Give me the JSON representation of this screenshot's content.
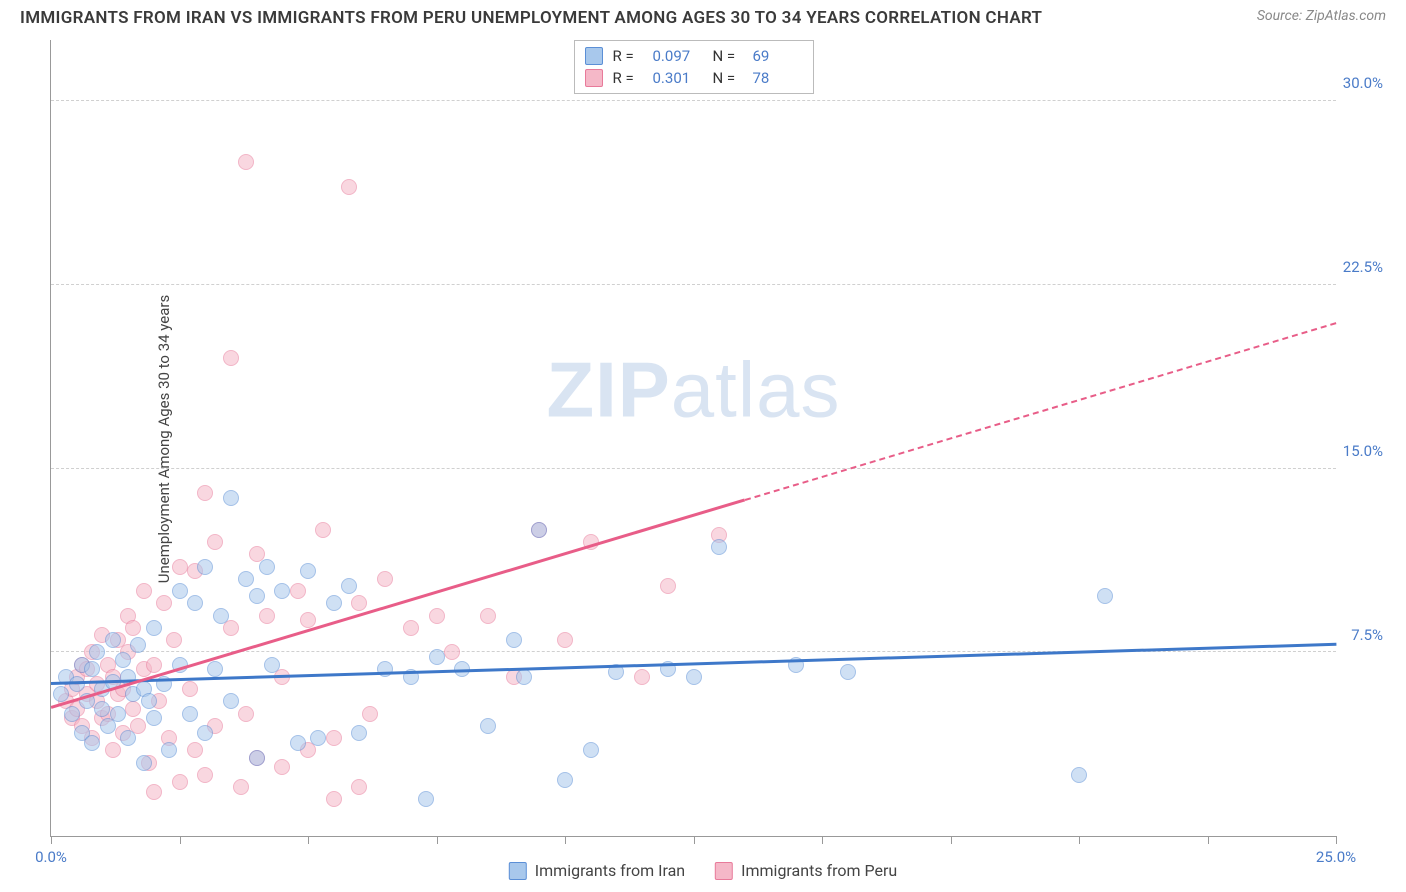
{
  "header": {
    "title": "IMMIGRANTS FROM IRAN VS IMMIGRANTS FROM PERU UNEMPLOYMENT AMONG AGES 30 TO 34 YEARS CORRELATION CHART",
    "source": "Source: ZipAtlas.com"
  },
  "watermark": {
    "part1": "ZIP",
    "part2": "atlas"
  },
  "chart": {
    "type": "scatter",
    "y_axis_label": "Unemployment Among Ages 30 to 34 years",
    "xlim": [
      0,
      25
    ],
    "ylim": [
      0,
      32.5
    ],
    "x_ticks": [
      0,
      2.5,
      5,
      7.5,
      10,
      12.5,
      15,
      17.5,
      20,
      22.5,
      25
    ],
    "y_gridlines": [
      7.5,
      15,
      22.5,
      30
    ],
    "y_tick_labels": [
      {
        "v": 7.5,
        "t": "7.5%"
      },
      {
        "v": 15,
        "t": "15.0%"
      },
      {
        "v": 22.5,
        "t": "22.5%"
      },
      {
        "v": 30,
        "t": "30.0%"
      }
    ],
    "x_tick_labels": [
      {
        "v": 0,
        "t": "0.0%"
      },
      {
        "v": 25,
        "t": "25.0%"
      }
    ],
    "grid_color": "#d0d0d0",
    "axis_color": "#999999",
    "background_color": "#ffffff",
    "label_color": "#4a7bc8"
  },
  "series": [
    {
      "name": "Immigrants from Iran",
      "fill": "#a8c8ec",
      "stroke": "#5b8fd6",
      "line_color": "#3e78c9",
      "r_value": "0.097",
      "n_value": "69",
      "trend": {
        "x1": 0,
        "y1": 6.3,
        "x2": 25,
        "y2": 7.9,
        "dash_from_x": null
      },
      "points": [
        [
          0.2,
          5.8
        ],
        [
          0.3,
          6.5
        ],
        [
          0.4,
          5.0
        ],
        [
          0.5,
          6.2
        ],
        [
          0.6,
          4.2
        ],
        [
          0.6,
          7.0
        ],
        [
          0.7,
          5.5
        ],
        [
          0.8,
          6.8
        ],
        [
          0.8,
          3.8
        ],
        [
          0.9,
          7.5
        ],
        [
          1.0,
          5.2
        ],
        [
          1.0,
          6.0
        ],
        [
          1.1,
          4.5
        ],
        [
          1.2,
          8.0
        ],
        [
          1.2,
          6.3
        ],
        [
          1.3,
          5.0
        ],
        [
          1.4,
          7.2
        ],
        [
          1.5,
          4.0
        ],
        [
          1.5,
          6.5
        ],
        [
          1.6,
          5.8
        ],
        [
          1.7,
          7.8
        ],
        [
          1.8,
          3.0
        ],
        [
          1.8,
          6.0
        ],
        [
          1.9,
          5.5
        ],
        [
          2.0,
          8.5
        ],
        [
          2.0,
          4.8
        ],
        [
          2.2,
          6.2
        ],
        [
          2.3,
          3.5
        ],
        [
          2.5,
          7.0
        ],
        [
          2.5,
          10.0
        ],
        [
          2.7,
          5.0
        ],
        [
          2.8,
          9.5
        ],
        [
          3.0,
          11.0
        ],
        [
          3.0,
          4.2
        ],
        [
          3.2,
          6.8
        ],
        [
          3.3,
          9.0
        ],
        [
          3.5,
          13.8
        ],
        [
          3.5,
          5.5
        ],
        [
          3.8,
          10.5
        ],
        [
          4.0,
          3.2
        ],
        [
          4.0,
          9.8
        ],
        [
          4.2,
          11.0
        ],
        [
          4.3,
          7.0
        ],
        [
          4.5,
          10.0
        ],
        [
          4.8,
          3.8
        ],
        [
          5.0,
          10.8
        ],
        [
          5.2,
          4.0
        ],
        [
          5.5,
          9.5
        ],
        [
          5.8,
          10.2
        ],
        [
          6.0,
          4.2
        ],
        [
          6.5,
          6.8
        ],
        [
          7.0,
          6.5
        ],
        [
          7.3,
          1.5
        ],
        [
          7.5,
          7.3
        ],
        [
          8.0,
          6.8
        ],
        [
          8.5,
          4.5
        ],
        [
          9.0,
          8.0
        ],
        [
          9.2,
          6.5
        ],
        [
          9.5,
          12.5
        ],
        [
          10.0,
          2.3
        ],
        [
          10.5,
          3.5
        ],
        [
          11.0,
          6.7
        ],
        [
          12.0,
          6.8
        ],
        [
          12.5,
          6.5
        ],
        [
          13.0,
          11.8
        ],
        [
          14.5,
          7.0
        ],
        [
          15.5,
          6.7
        ],
        [
          20.0,
          2.5
        ],
        [
          20.5,
          9.8
        ]
      ]
    },
    {
      "name": "Immigrants from Peru",
      "fill": "#f5b8c8",
      "stroke": "#e87a9a",
      "line_color": "#e85d88",
      "r_value": "0.301",
      "n_value": "78",
      "trend": {
        "x1": 0,
        "y1": 5.3,
        "x2": 25,
        "y2": 21.0,
        "dash_from_x": 13.5
      },
      "points": [
        [
          0.3,
          5.5
        ],
        [
          0.4,
          6.0
        ],
        [
          0.4,
          4.8
        ],
        [
          0.5,
          6.5
        ],
        [
          0.5,
          5.2
        ],
        [
          0.6,
          7.0
        ],
        [
          0.6,
          4.5
        ],
        [
          0.7,
          5.8
        ],
        [
          0.7,
          6.8
        ],
        [
          0.8,
          4.0
        ],
        [
          0.8,
          7.5
        ],
        [
          0.9,
          5.5
        ],
        [
          0.9,
          6.2
        ],
        [
          1.0,
          8.2
        ],
        [
          1.0,
          4.8
        ],
        [
          1.1,
          5.0
        ],
        [
          1.1,
          7.0
        ],
        [
          1.2,
          6.5
        ],
        [
          1.2,
          3.5
        ],
        [
          1.3,
          8.0
        ],
        [
          1.3,
          5.8
        ],
        [
          1.4,
          6.0
        ],
        [
          1.4,
          4.2
        ],
        [
          1.5,
          7.5
        ],
        [
          1.5,
          9.0
        ],
        [
          1.6,
          5.2
        ],
        [
          1.6,
          8.5
        ],
        [
          1.7,
          4.5
        ],
        [
          1.8,
          6.8
        ],
        [
          1.8,
          10.0
        ],
        [
          1.9,
          3.0
        ],
        [
          2.0,
          7.0
        ],
        [
          2.0,
          1.8
        ],
        [
          2.1,
          5.5
        ],
        [
          2.2,
          9.5
        ],
        [
          2.3,
          4.0
        ],
        [
          2.4,
          8.0
        ],
        [
          2.5,
          11.0
        ],
        [
          2.5,
          2.2
        ],
        [
          2.7,
          6.0
        ],
        [
          2.8,
          3.5
        ],
        [
          2.8,
          10.8
        ],
        [
          3.0,
          2.5
        ],
        [
          3.0,
          14.0
        ],
        [
          3.2,
          12.0
        ],
        [
          3.2,
          4.5
        ],
        [
          3.5,
          8.5
        ],
        [
          3.5,
          19.5
        ],
        [
          3.7,
          2.0
        ],
        [
          3.8,
          27.5
        ],
        [
          3.8,
          5.0
        ],
        [
          4.0,
          11.5
        ],
        [
          4.0,
          3.2
        ],
        [
          4.2,
          9.0
        ],
        [
          4.5,
          6.5
        ],
        [
          4.5,
          2.8
        ],
        [
          4.8,
          10.0
        ],
        [
          5.0,
          3.5
        ],
        [
          5.0,
          8.8
        ],
        [
          5.3,
          12.5
        ],
        [
          5.5,
          4.0
        ],
        [
          5.5,
          1.5
        ],
        [
          5.8,
          26.5
        ],
        [
          6.0,
          9.5
        ],
        [
          6.0,
          2.0
        ],
        [
          6.2,
          5.0
        ],
        [
          6.5,
          10.5
        ],
        [
          7.0,
          8.5
        ],
        [
          7.5,
          9.0
        ],
        [
          7.8,
          7.5
        ],
        [
          8.5,
          9.0
        ],
        [
          9.0,
          6.5
        ],
        [
          9.5,
          12.5
        ],
        [
          10.0,
          8.0
        ],
        [
          10.5,
          12.0
        ],
        [
          11.5,
          6.5
        ],
        [
          12.0,
          10.2
        ],
        [
          13.0,
          12.3
        ]
      ]
    }
  ],
  "legend_top_labels": {
    "r": "R =",
    "n": "N ="
  },
  "legend_bottom": [
    {
      "label": "Immigrants from Iran",
      "series_idx": 0
    },
    {
      "label": "Immigrants from Peru",
      "series_idx": 1
    }
  ]
}
